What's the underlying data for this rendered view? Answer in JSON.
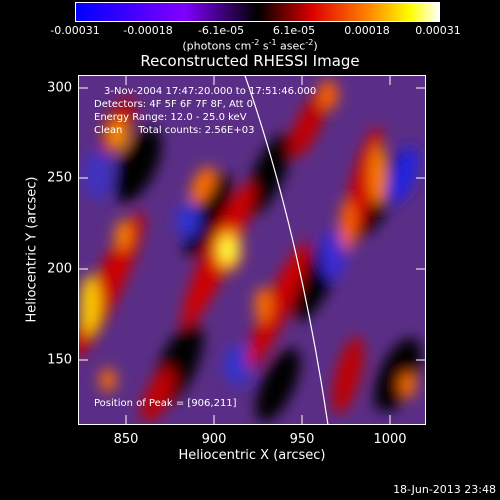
{
  "colorbar": {
    "ticks": [
      "-0.00031",
      "-0.00018",
      "-6.1e-05",
      "6.1e-05",
      "0.00018",
      "0.00031"
    ],
    "units_main": "(photons cm",
    "units_sup1": "-2",
    "units_mid1": " s",
    "units_sup2": "-1",
    "units_mid2": " asec",
    "units_sup3": "-2",
    "units_end": ")"
  },
  "title": "Reconstructed RHESSI Image",
  "annotations": {
    "time_range": "3-Nov-2004 17:47:20.000 to 17:51:46.000",
    "detectors": "Detectors: 4F 5F 6F 7F 8F, Att 0",
    "energy": "Energy Range: 12.0 - 25.0 keV",
    "clean": "Clean     Total counts: 2.56E+03",
    "peak": "Position of Peak = [906,211]"
  },
  "axes": {
    "xlabel": "Heliocentric X (arcsec)",
    "ylabel": "Heliocentric Y (arcsec)",
    "xticks": [
      "850",
      "900",
      "950",
      "1000"
    ],
    "yticks": [
      "300",
      "250",
      "200",
      "150"
    ]
  },
  "footer": "18-Jun-2013 23:48",
  "colors": {
    "colormap": [
      "#0000ff",
      "#6a00d0",
      "#7a3aa8",
      "#000000",
      "#cc0000",
      "#ff7700",
      "#ffff00",
      "#ffffff"
    ]
  }
}
